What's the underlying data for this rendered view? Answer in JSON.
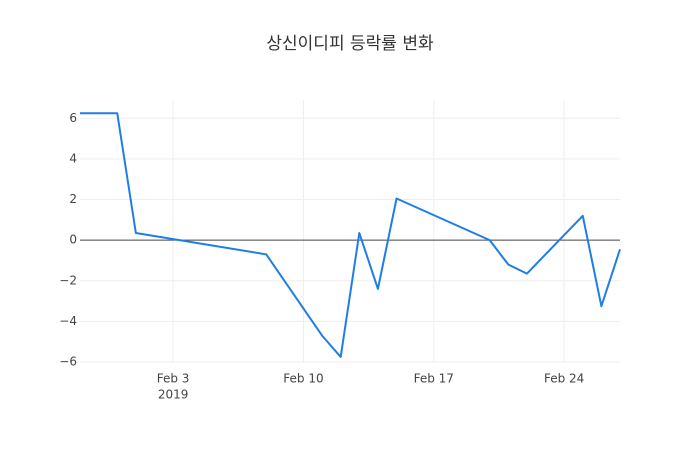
{
  "chart_data": {
    "type": "line",
    "title": "상신이디피 등락률 변화",
    "x": [
      "2019-01-29",
      "2019-01-31",
      "2019-02-01",
      "2019-02-08",
      "2019-02-11",
      "2019-02-12",
      "2019-02-13",
      "2019-02-14",
      "2019-02-15",
      "2019-02-20",
      "2019-02-21",
      "2019-02-22",
      "2019-02-25",
      "2019-02-26",
      "2019-02-27"
    ],
    "series": [
      {
        "name": "등락률",
        "color": "#1f7ee6",
        "values": [
          6.25,
          6.25,
          0.35,
          -0.7,
          -4.7,
          -5.75,
          0.35,
          -2.4,
          2.05,
          0.0,
          -1.2,
          -1.65,
          1.2,
          -3.25,
          -0.45
        ]
      }
    ],
    "xlim": [
      "2019-01-29",
      "2019-02-27"
    ],
    "xticks": [
      {
        "value": "2019-02-03",
        "label": "Feb 3"
      },
      {
        "value": "2019-02-10",
        "label": "Feb 10"
      },
      {
        "value": "2019-02-17",
        "label": "Feb 17"
      },
      {
        "value": "2019-02-24",
        "label": "Feb 24"
      }
    ],
    "x_year_label": "2019",
    "ylim": [
      -6.0,
      6.9
    ],
    "yticks": [
      -6,
      -4,
      -2,
      0,
      2,
      4,
      6
    ],
    "yticks_labels": [
      {
        "value": -6,
        "label": "−6"
      },
      {
        "value": -4,
        "label": "−4"
      },
      {
        "value": -2,
        "label": "−2"
      },
      {
        "value": 0,
        "label": "0"
      },
      {
        "value": 2,
        "label": "2"
      },
      {
        "value": 4,
        "label": "4"
      },
      {
        "value": 6,
        "label": "6"
      }
    ],
    "grid": true,
    "zeroline": true
  }
}
